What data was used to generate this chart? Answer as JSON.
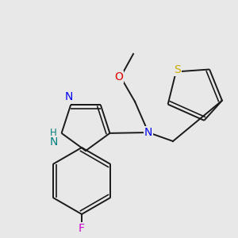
{
  "bg_color": "#e8e8e8",
  "bond_color": "#1a1a1a",
  "lw": 1.4,
  "fig_w": 3.0,
  "fig_h": 3.0,
  "dpi": 100,
  "colors": {
    "N": "#0000ee",
    "NH": "#008080",
    "O": "#dd0000",
    "S": "#ccaa00",
    "F": "#cc00cc",
    "C": "#1a1a1a"
  }
}
